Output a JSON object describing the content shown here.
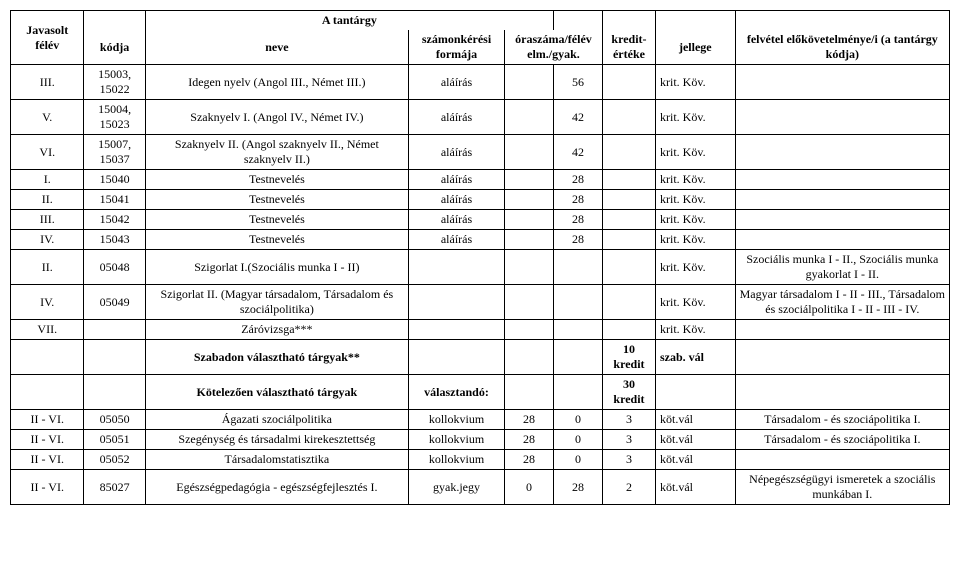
{
  "header": {
    "super_title": "A tantárgy",
    "cols": {
      "felev": "Javasolt félév",
      "kodja": "kódja",
      "neve": "neve",
      "szamon": "számonkérési formája",
      "oraszam": "óraszáma/félév elm./gyak.",
      "kredit": "kredit-értéke",
      "jellege": "jellege",
      "elokov": "felvétel előkövetelménye/i (a tantárgy kódja)"
    }
  },
  "widths": {
    "felev": 72,
    "kodja": 60,
    "neve": 258,
    "szamon": 94,
    "ora1": 48,
    "ora2": 48,
    "kredit": 52,
    "jellege": 78,
    "elokov": 210
  },
  "rows": [
    {
      "felev": "III.",
      "kod": "15003, 15022",
      "nev": "Idegen nyelv (Angol III., Német III.)",
      "szam": "aláírás",
      "o1": "",
      "o2": "56",
      "kr": "",
      "jel": "krit. Köv.",
      "elo": ""
    },
    {
      "felev": "V.",
      "kod": "15004, 15023",
      "nev": "Szaknyelv I. (Angol IV., Német IV.)",
      "szam": "aláírás",
      "o1": "",
      "o2": "42",
      "kr": "",
      "jel": "krit. Köv.",
      "elo": ""
    },
    {
      "felev": "VI.",
      "kod": "15007, 15037",
      "nev": "Szaknyelv II. (Angol szaknyelv II., Német szaknyelv II.)",
      "szam": "aláírás",
      "o1": "",
      "o2": "42",
      "kr": "",
      "jel": "krit. Köv.",
      "elo": ""
    },
    {
      "felev": "I.",
      "kod": "15040",
      "nev": "Testnevelés",
      "szam": "aláírás",
      "o1": "",
      "o2": "28",
      "kr": "",
      "jel": "krit. Köv.",
      "elo": ""
    },
    {
      "felev": "II.",
      "kod": "15041",
      "nev": "Testnevelés",
      "szam": "aláírás",
      "o1": "",
      "o2": "28",
      "kr": "",
      "jel": "krit. Köv.",
      "elo": ""
    },
    {
      "felev": "III.",
      "kod": "15042",
      "nev": "Testnevelés",
      "szam": "aláírás",
      "o1": "",
      "o2": "28",
      "kr": "",
      "jel": "krit. Köv.",
      "elo": ""
    },
    {
      "felev": "IV.",
      "kod": "15043",
      "nev": "Testnevelés",
      "szam": "aláírás",
      "o1": "",
      "o2": "28",
      "kr": "",
      "jel": "krit. Köv.",
      "elo": ""
    },
    {
      "felev": "II.",
      "kod": "05048",
      "nev": "Szigorlat I.(Szociális munka I - II)",
      "szam": "",
      "o1": "",
      "o2": "",
      "kr": "",
      "jel": "krit. Köv.",
      "elo": "Szociális munka I - II., Szociális munka gyakorlat I - II."
    },
    {
      "felev": "IV.",
      "kod": "05049",
      "nev": "Szigorlat II. (Magyar társadalom, Társadalom és szociálpolitika)",
      "szam": "",
      "o1": "",
      "o2": "",
      "kr": "",
      "jel": "krit. Köv.",
      "elo": "Magyar társadalom I - II - III., Társadalom és szociálpolitika I - II - III - IV."
    },
    {
      "felev": "VII.",
      "kod": "",
      "nev": "Záróvizsga***",
      "szam": "",
      "o1": "",
      "o2": "",
      "kr": "",
      "jel": "krit. Köv.",
      "elo": ""
    },
    {
      "felev": "",
      "kod": "",
      "nev": "Szabadon választható tárgyak**",
      "nev_bold": true,
      "szam": "",
      "o1": "",
      "o2": "",
      "kr": "10 kredit",
      "kr_bold": true,
      "jel": "szab. vál",
      "jel_bold": true,
      "elo": ""
    },
    {
      "felev": "",
      "kod": "",
      "nev": "Kötelezően választható tárgyak",
      "nev_bold": true,
      "szam": "választandó:",
      "szam_bold": true,
      "o1": "",
      "o2": "",
      "kr": "30 kredit",
      "kr_bold": true,
      "jel": "",
      "elo": ""
    },
    {
      "felev": "II - VI.",
      "kod": "05050",
      "nev": "Ágazati szociálpolitika",
      "szam": "kollokvium",
      "o1": "28",
      "o2": "0",
      "kr": "3",
      "jel": "köt.vál",
      "elo": "Társadalom - és szociápolitika I."
    },
    {
      "felev": "II - VI.",
      "kod": "05051",
      "nev": "Szegénység és társadalmi kirekesztettség",
      "szam": "kollokvium",
      "o1": "28",
      "o2": "0",
      "kr": "3",
      "jel": "köt.vál",
      "elo": "Társadalom - és szociápolitika I."
    },
    {
      "felev": "II - VI.",
      "kod": "05052",
      "nev": "Társadalomstatisztika",
      "szam": "kollokvium",
      "o1": "28",
      "o2": "0",
      "kr": "3",
      "jel": "köt.vál",
      "elo": ""
    },
    {
      "felev": "II - VI.",
      "kod": "85027",
      "nev": "Egészségpedagógia - egészségfejlesztés I.",
      "szam": "gyak.jegy",
      "o1": "0",
      "o2": "28",
      "kr": "2",
      "jel": "köt.vál",
      "elo": "Népegészségügyi ismeretek a szociális munkában I."
    }
  ]
}
